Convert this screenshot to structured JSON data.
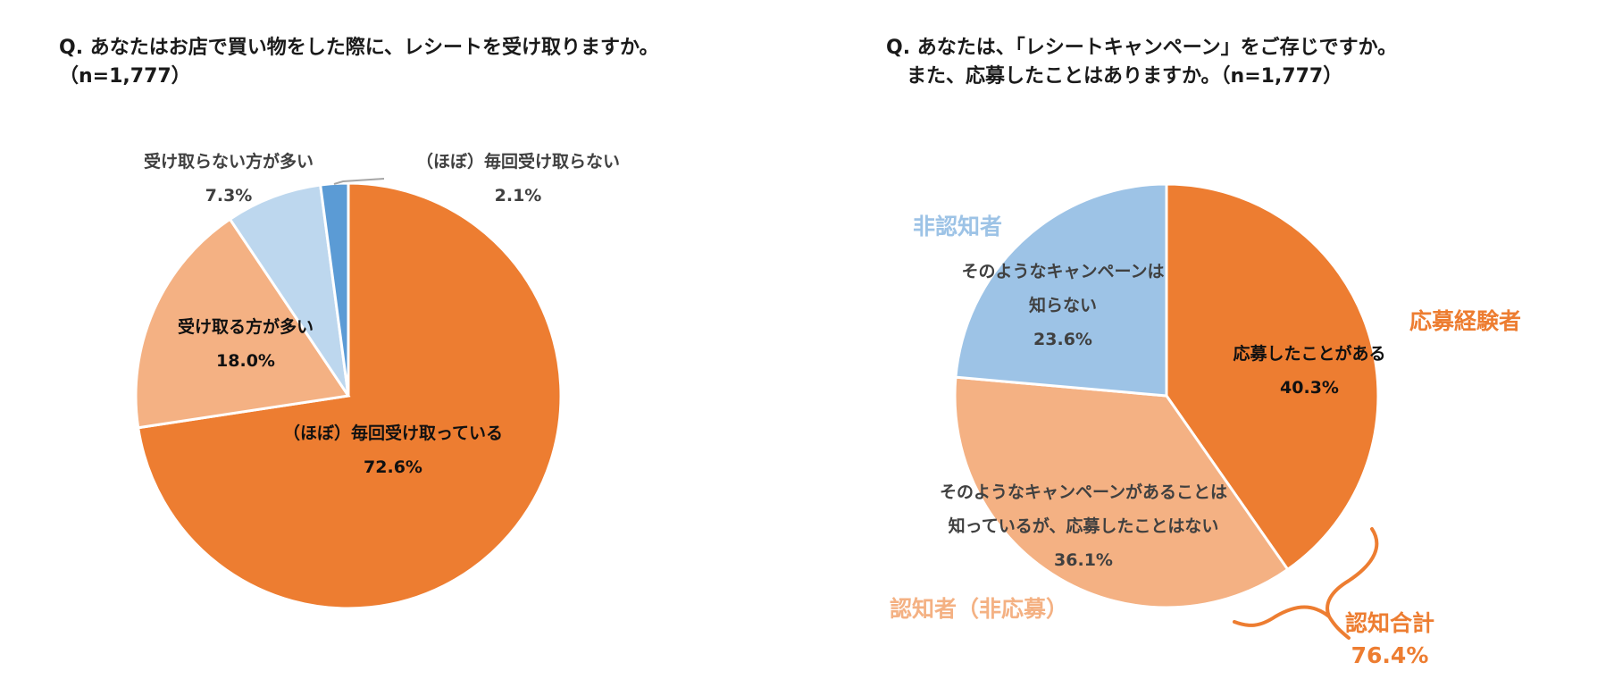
{
  "left": {
    "title_line1": "Q. あなたはお店で買い物をした際に、レシートを受け取りますか。",
    "title_line2": "（n=1,777）",
    "labels": [
      {
        "name": "（ほぼ）毎回受け取っている",
        "pct": "72.6%"
      },
      {
        "name": "受け取る方が多い",
        "pct": "18.0%"
      },
      {
        "name": "受け取らない方が多い",
        "pct": "7.3%"
      },
      {
        "name": "（ほぼ）毎回受け取らない",
        "pct": "2.1%"
      }
    ]
  },
  "right": {
    "title_line1": "Q. あなたは、「レシートキャンペーン」をご存じですか。",
    "title_line2": "   また、応募したことはありますか。（n=1,777）",
    "labels": [
      {
        "name": "応募したことがある",
        "pct": "40.3%"
      },
      {
        "name_line1": "そのようなキャンペーンがあることは",
        "name_line2": "知っているが、応募したことはない",
        "pct": "36.1%"
      },
      {
        "name_line1": "そのようなキャンペーンは",
        "name_line2": "知らない",
        "pct": "23.6%"
      }
    ],
    "categories": {
      "applied": "応募経験者",
      "aware_not_applied": "認知者（非応募）",
      "unaware": "非認知者",
      "aware_total_label": "認知合計",
      "aware_total_value": "76.4%"
    }
  },
  "colors": {
    "dark_orange": "#ED7D31",
    "light_orange": "#F4B183",
    "light_blue": "#BDD7EE",
    "mid_blue": "#5B9BD5",
    "sky_blue": "#9DC3E6",
    "category_orange": "#ED7D31",
    "category_light_orange": "#F4B183",
    "category_blue": "#9DC3E6"
  },
  "chart_data": [
    {
      "type": "pie",
      "title": "Q. あなたはお店で買い物をした際に、レシートを受け取りますか。（n=1,777）",
      "categories": [
        "（ほぼ）毎回受け取っている",
        "受け取る方が多い",
        "受け取らない方が多い",
        "（ほぼ）毎回受け取らない"
      ],
      "values": [
        72.6,
        18.0,
        7.3,
        2.1
      ],
      "colors": [
        "#ED7D31",
        "#F4B183",
        "#BDD7EE",
        "#5B9BD5"
      ],
      "start_angle": "12 o'clock, clockwise",
      "legend": "none (data labels)"
    },
    {
      "type": "pie",
      "title": "Q. あなたは、「レシートキャンペーン」をご存じですか。また、応募したことはありますか。（n=1,777）",
      "categories": [
        "応募したことがある",
        "そのようなキャンペーンがあることは知っているが、応募したことはない",
        "そのようなキャンペーンは知らない"
      ],
      "values": [
        40.3,
        36.1,
        23.6
      ],
      "colors": [
        "#ED7D31",
        "#F4B183",
        "#9DC3E6"
      ],
      "groups": {
        "応募経験者": 40.3,
        "認知者（非応募）": 36.1,
        "非認知者": 23.6
      },
      "annotations": [
        "認知合計 76.4%"
      ],
      "start_angle": "12 o'clock, clockwise",
      "legend": "none (data labels)"
    }
  ]
}
